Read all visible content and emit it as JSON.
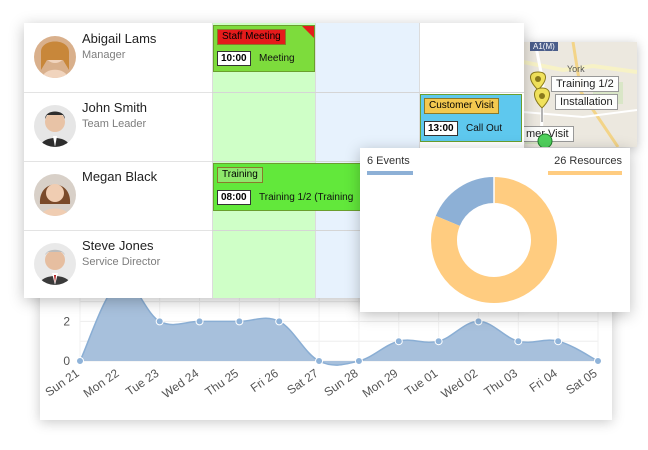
{
  "area_chart": {
    "y_ticks": [
      "0",
      "2"
    ],
    "categories": [
      "Sun 21",
      "Mon 22",
      "Tue 23",
      "Wed 24",
      "Thu 25",
      "Fri 26",
      "Sat 27",
      "Sun 28",
      "Mon 29",
      "Tue 01",
      "Wed 02",
      "Thu 03",
      "Fri 04",
      "Sat 05"
    ],
    "values": [
      0,
      4,
      2,
      2,
      2,
      2,
      0,
      0,
      1,
      1,
      2,
      1,
      1,
      0
    ],
    "ylim": [
      0,
      5
    ],
    "fill_color": "#a7c0dc",
    "line_color": "#8aaed4"
  },
  "resources": [
    {
      "name": "Abigail Lams",
      "role": "Manager"
    },
    {
      "name": "John Smith",
      "role": "Team Leader"
    },
    {
      "name": "Megan Black",
      "role": ""
    },
    {
      "name": "Steve Jones",
      "role": "Service Director"
    }
  ],
  "events": [
    {
      "tag": "Staff Meeting",
      "time": "10:00",
      "text": "Meeting",
      "color": "#7ddc3c",
      "tag_color": "#e51b1b"
    },
    {
      "tag": "Customer Visit",
      "time": "13:00",
      "text": "Call Out",
      "color": "#5ec8ee",
      "tag_color": "#f3c94f"
    },
    {
      "tag": "Training",
      "time": "08:00",
      "text": "Training 1/2 (Training",
      "color": "#62e83b",
      "tag_color": "#8ee86b"
    }
  ],
  "map": {
    "road": "A1(M)",
    "town": "York",
    "labels": [
      "Training 1/2",
      "Installation",
      "mer Visit"
    ]
  },
  "donut": {
    "events_label": "6 Events",
    "resources_label": "26 Resources",
    "events_color": "#8db0d6",
    "resources_color": "#ffcc80",
    "values": [
      6,
      26
    ]
  }
}
